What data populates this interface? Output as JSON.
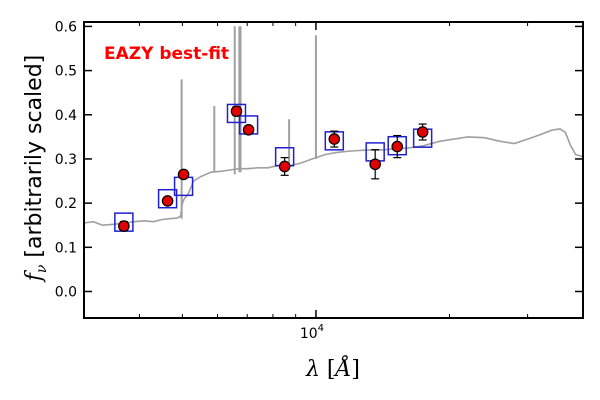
{
  "chart_data": {
    "type": "scatter",
    "ylabel": "f_ν [arbitrarily scaled]",
    "xlabel": "λ [Å]",
    "xscale": "log",
    "xlim": [
      3000,
      40000
    ],
    "ylim": [
      -0.06,
      0.61
    ],
    "yticks": [
      0.0,
      0.1,
      0.2,
      0.3,
      0.4,
      0.5,
      0.6
    ],
    "ytick_labels": [
      "0.0",
      "0.1",
      "0.2",
      "0.3",
      "0.4",
      "0.5",
      "0.6"
    ],
    "xticks": [
      10000
    ],
    "xtick_labels": [
      "10^4"
    ],
    "annotation": {
      "text": "EAZY best-fit",
      "color": "#ff0000"
    },
    "grid": false,
    "series": [
      {
        "type": "line",
        "color": "#a0a0a0",
        "x": [
          3000,
          3150,
          3300,
          3500,
          3700,
          3900,
          4100,
          4300,
          4500,
          4700,
          4850,
          4950,
          5000,
          5050,
          5150,
          5300,
          5500,
          5800,
          6100,
          6400,
          6700,
          7000,
          7400,
          7800,
          8200,
          8700,
          9200,
          9800,
          10500,
          11200,
          12000,
          13000,
          14000,
          15000,
          16200,
          17500,
          19000,
          20500,
          22000,
          24000,
          26000,
          28000,
          30000,
          32000,
          34000,
          35500,
          36500,
          37500,
          38500,
          40000
        ],
        "y": [
          0.155,
          0.158,
          0.15,
          0.152,
          0.155,
          0.158,
          0.16,
          0.158,
          0.163,
          0.165,
          0.166,
          0.17,
          0.2,
          0.21,
          0.22,
          0.25,
          0.26,
          0.27,
          0.272,
          0.275,
          0.278,
          0.278,
          0.28,
          0.28,
          0.285,
          0.285,
          0.29,
          0.3,
          0.31,
          0.315,
          0.318,
          0.32,
          0.32,
          0.323,
          0.325,
          0.33,
          0.34,
          0.345,
          0.35,
          0.348,
          0.34,
          0.335,
          0.345,
          0.355,
          0.365,
          0.368,
          0.36,
          0.33,
          0.31,
          0.305
        ]
      },
      {
        "type": "lines",
        "color": "#a0a0a0",
        "x": [
          4980,
          5900,
          6560,
          6720,
          6760,
          8700,
          10000
        ],
        "y_base": [
          0.165,
          0.27,
          0.265,
          0.27,
          0.27,
          0.285,
          0.3
        ],
        "y_top": [
          0.48,
          0.42,
          0.6,
          0.6,
          0.6,
          0.39,
          0.58
        ]
      },
      {
        "type": "model_boxes",
        "color": "#2020d0",
        "x": [
          3690,
          4630,
          5030,
          6620,
          7050,
          8500,
          11000,
          13600,
          15250,
          17400
        ],
        "y": [
          0.157,
          0.21,
          0.238,
          0.403,
          0.377,
          0.305,
          0.341,
          0.316,
          0.33,
          0.347
        ]
      },
      {
        "type": "observed_points",
        "color": "#e00000",
        "x": [
          3690,
          4630,
          5030,
          6620,
          7050,
          8500,
          11000,
          13600,
          15250,
          17400
        ],
        "y": [
          0.148,
          0.205,
          0.265,
          0.408,
          0.366,
          0.283,
          0.345,
          0.288,
          0.328,
          0.361
        ],
        "yerr": [
          0.01,
          0.008,
          0.008,
          0.01,
          0.009,
          0.02,
          0.018,
          0.033,
          0.025,
          0.018
        ]
      }
    ]
  }
}
